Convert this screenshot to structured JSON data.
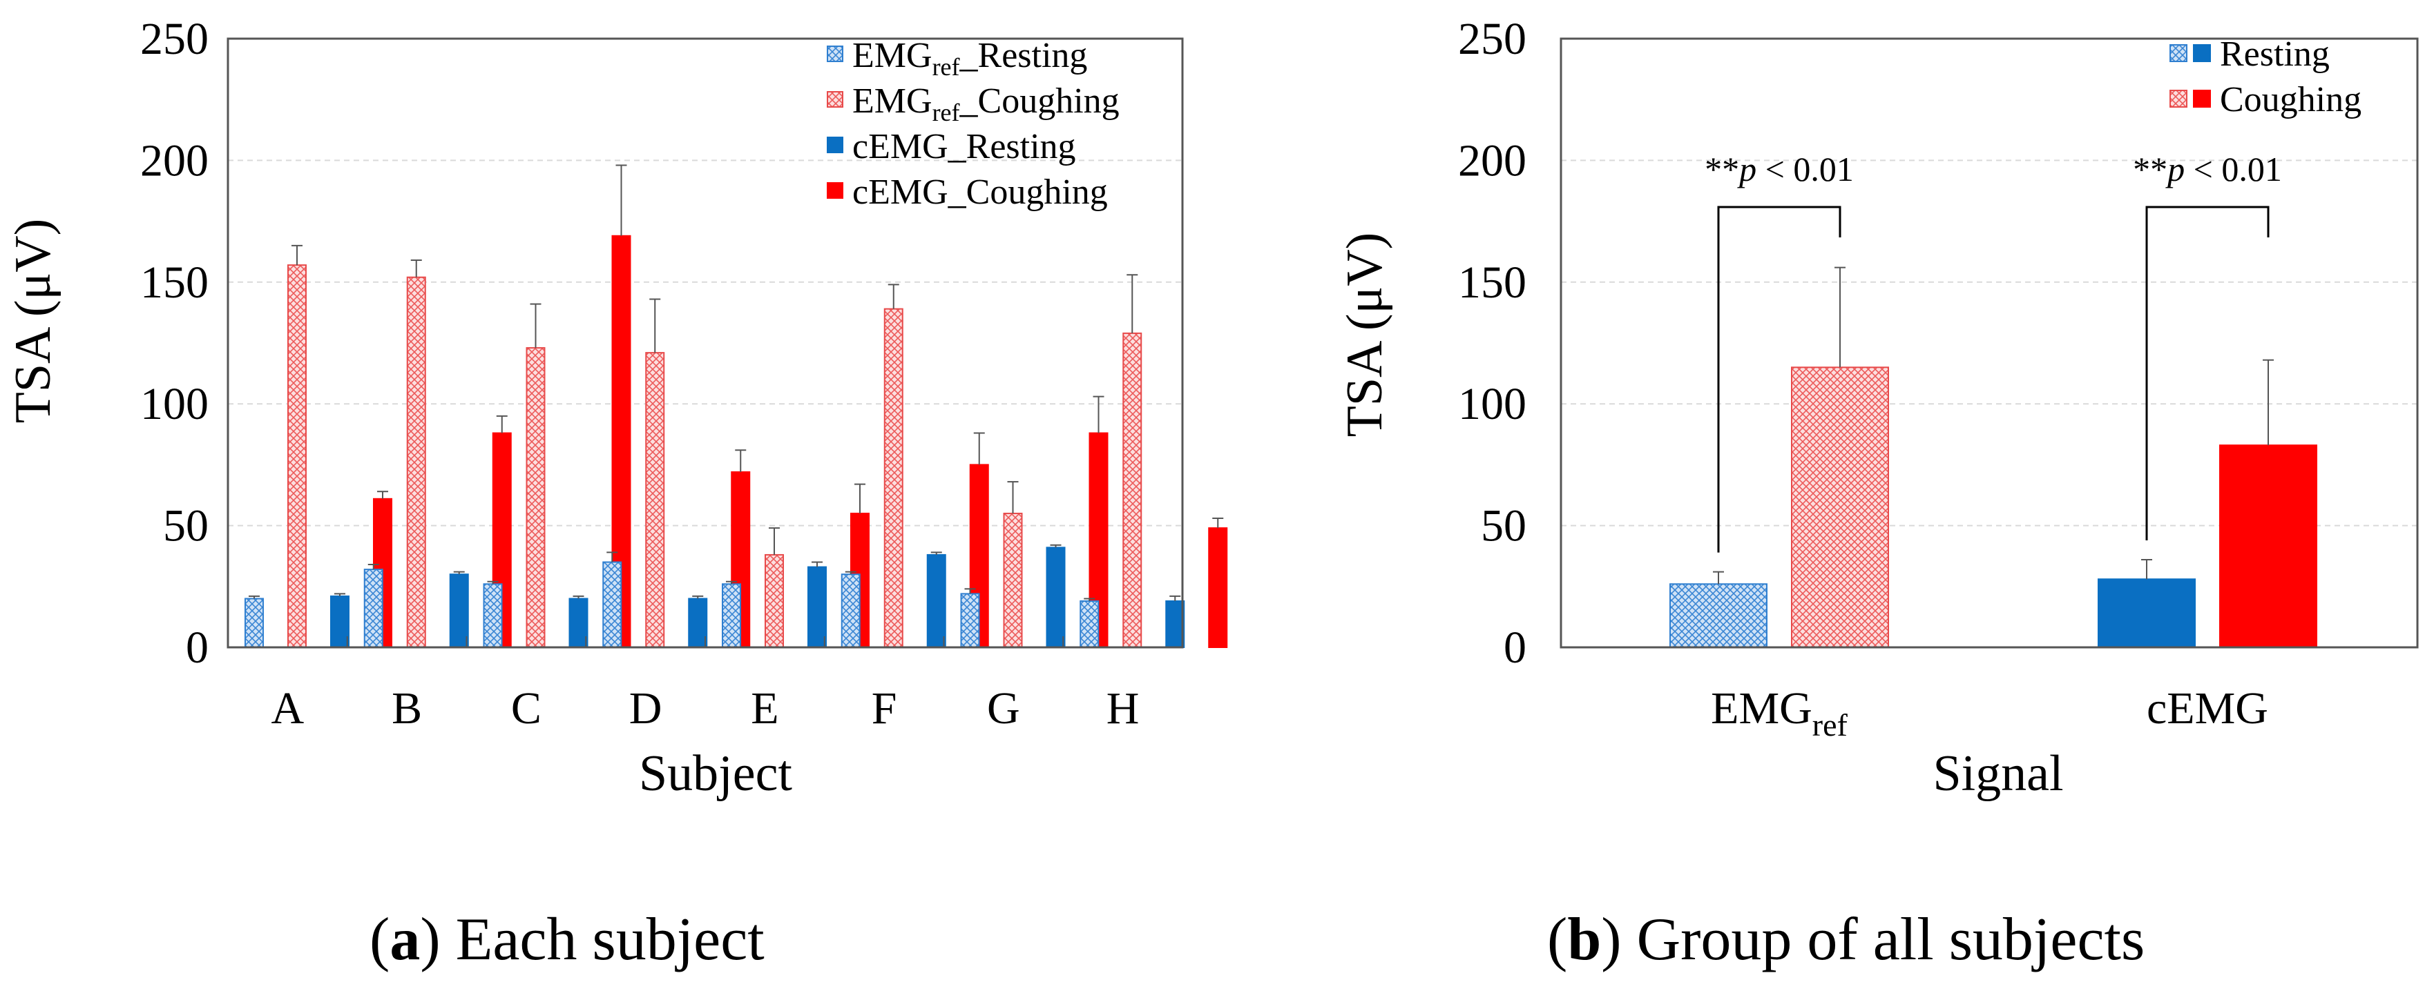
{
  "colors": {
    "emg_resting": "#2f7fd0",
    "emg_resting_bg": "#cfe2f6",
    "emg_coughing": "#e84a4a",
    "emg_coughing_bg": "#fbd6d6",
    "cemg_resting": "#0a6fc2",
    "cemg_coughing": "#ff0000",
    "axis": "#555555",
    "grid": "#d9d9d9"
  },
  "captions": {
    "a_label": "a",
    "a_text": ") Each subject",
    "b_label": "b",
    "b_text": ") Group of all subjects"
  },
  "chart_data": [
    {
      "type": "bar",
      "categories": [
        "A",
        "B",
        "C",
        "D",
        "E",
        "F",
        "G",
        "H"
      ],
      "series": [
        {
          "name": "EMG_ref_Resting",
          "legend_main": "EMG",
          "legend_sub": "ref",
          "legend_suffix": "_Resting",
          "values": [
            20,
            32,
            26,
            35,
            26,
            30,
            22,
            19
          ],
          "errors": [
            1,
            2,
            1,
            4,
            1,
            1,
            2,
            1
          ],
          "style": "emg_resting"
        },
        {
          "name": "EMG_ref_Coughing",
          "legend_main": "EMG",
          "legend_sub": "ref",
          "legend_suffix": "_Coughing",
          "values": [
            157,
            152,
            123,
            121,
            38,
            139,
            55,
            129
          ],
          "errors": [
            8,
            7,
            18,
            22,
            11,
            10,
            13,
            24
          ],
          "style": "emg_coughing"
        },
        {
          "name": "cEMG_Resting",
          "legend_main": "cEMG_Resting",
          "legend_sub": "",
          "legend_suffix": "",
          "values": [
            21,
            30,
            20,
            20,
            33,
            38,
            41,
            19
          ],
          "errors": [
            1,
            1,
            1,
            1,
            2,
            1,
            1,
            2
          ],
          "style": "cemg_resting"
        },
        {
          "name": "cEMG_Coughing",
          "legend_main": "cEMG_Coughing",
          "legend_sub": "",
          "legend_suffix": "",
          "values": [
            61,
            88,
            169,
            72,
            55,
            75,
            88,
            49
          ],
          "errors": [
            3,
            7,
            29,
            9,
            12,
            13,
            15,
            4
          ],
          "style": "cemg_coughing"
        }
      ],
      "xlabel": "Subject",
      "ylabel": "TSA (μV)",
      "ylim": [
        0,
        250
      ],
      "yticks": [
        0,
        50,
        100,
        150,
        200,
        250
      ],
      "grid": true,
      "legend_position": "top-right"
    },
    {
      "type": "bar",
      "categories": [
        "EMG",
        "cEMG"
      ],
      "category_subscripts": [
        "ref",
        ""
      ],
      "series": [
        {
          "name": "Resting",
          "values": [
            26,
            28
          ],
          "errors": [
            5,
            8
          ]
        },
        {
          "name": "Coughing",
          "values": [
            115,
            83
          ],
          "errors": [
            41,
            35
          ]
        }
      ],
      "legend": [
        "Resting",
        "Coughing"
      ],
      "annotations": [
        {
          "stars": "**",
          "p": "p",
          "rest": " < 0.01",
          "category": 0
        },
        {
          "stars": "**",
          "p": "p",
          "rest": " < 0.01",
          "category": 1
        }
      ],
      "xlabel": "Signal",
      "ylabel": "TSA (μV)",
      "ylim": [
        0,
        250
      ],
      "yticks": [
        0,
        50,
        100,
        150,
        200,
        250
      ],
      "grid": true,
      "legend_position": "top-right"
    }
  ]
}
